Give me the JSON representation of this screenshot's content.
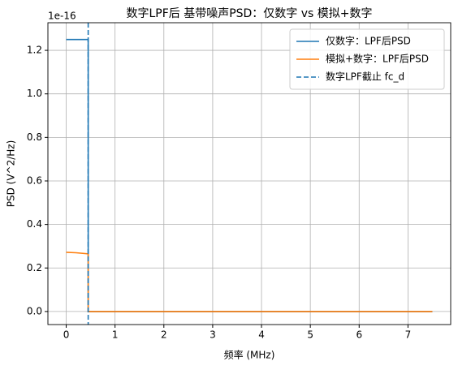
{
  "chart_data": {
    "type": "line",
    "title": "数字LPF后 基带噪声PSD：仅数字 vs 模拟+数字",
    "x_label": "频率 (MHz)",
    "y_label": "PSD (V^2/Hz)",
    "y_offset_label": "1e-16",
    "xlim": [
      -0.375,
      7.875
    ],
    "ylim": [
      -0.06,
      1.327
    ],
    "xticks": [
      0,
      1,
      2,
      3,
      4,
      5,
      6,
      7
    ],
    "yticks": [
      {
        "value": 0,
        "label": "0.0"
      },
      0.2,
      0.4,
      0.6,
      0.8,
      {
        "value": 1,
        "label": "1.0"
      },
      1.2
    ],
    "grid": true,
    "legend": "upper right",
    "series": [
      {
        "name": "仅数字：LPF后PSD",
        "color": "#1f77b4",
        "x": [
          0,
          0.45,
          0.45,
          7.5
        ],
        "values": [
          1.25,
          1.25,
          0,
          0
        ]
      },
      {
        "name": "模拟+数字：LPF后PSD",
        "color": "#ff7f0e",
        "x": [
          0,
          0.2,
          0.45,
          0.45,
          7.5
        ],
        "values": [
          0.272,
          0.27,
          0.265,
          0,
          0
        ]
      }
    ],
    "vlines": [
      {
        "name": "数字LPF截止 fc_d",
        "color": "#1f77b4",
        "x": 0.45
      }
    ]
  }
}
